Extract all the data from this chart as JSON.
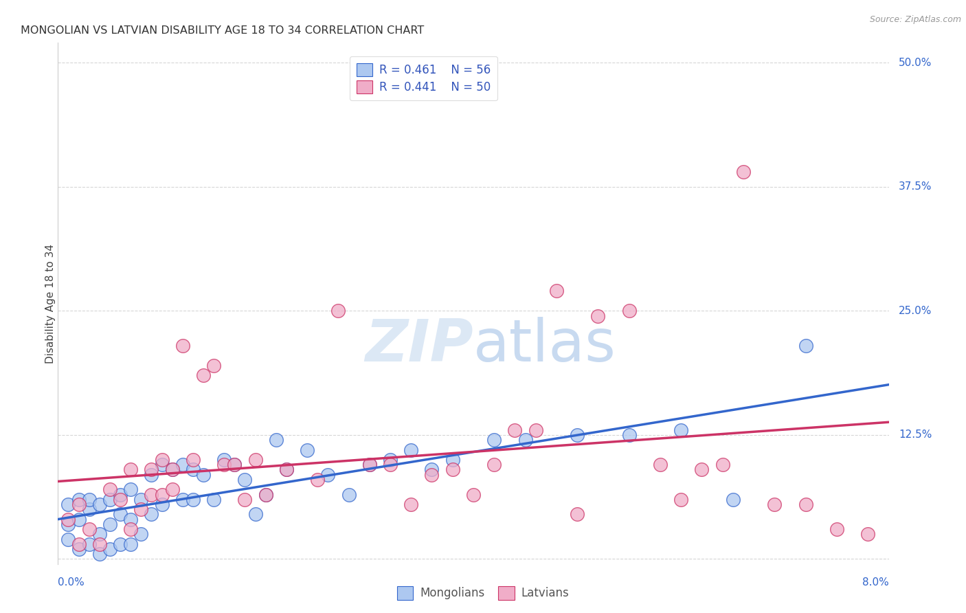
{
  "title": "MONGOLIAN VS LATVIAN DISABILITY AGE 18 TO 34 CORRELATION CHART",
  "source": "Source: ZipAtlas.com",
  "ylabel": "Disability Age 18 to 34",
  "xlim": [
    0.0,
    0.08
  ],
  "ylim": [
    -0.005,
    0.52
  ],
  "yticks": [
    0.0,
    0.125,
    0.25,
    0.375,
    0.5
  ],
  "ytick_labels": [
    "",
    "12.5%",
    "25.0%",
    "37.5%",
    "50.0%"
  ],
  "xticks": [
    0.0,
    0.02,
    0.04,
    0.06,
    0.08
  ],
  "xtick_labels": [
    "0.0%",
    "",
    "",
    "",
    "8.0%"
  ],
  "mongolian_R": 0.461,
  "mongolian_N": 56,
  "latvian_R": 0.441,
  "latvian_N": 50,
  "mongolian_color": "#adc8f0",
  "latvian_color": "#f0adc8",
  "mongolian_line_color": "#3366cc",
  "latvian_line_color": "#cc3366",
  "legend_text_color": "#3355bb",
  "background_color": "#ffffff",
  "watermark_color": "#dce8f5",
  "mongolian_x": [
    0.001,
    0.001,
    0.001,
    0.002,
    0.002,
    0.002,
    0.003,
    0.003,
    0.003,
    0.004,
    0.004,
    0.004,
    0.005,
    0.005,
    0.005,
    0.006,
    0.006,
    0.006,
    0.007,
    0.007,
    0.007,
    0.008,
    0.008,
    0.009,
    0.009,
    0.01,
    0.01,
    0.011,
    0.012,
    0.012,
    0.013,
    0.013,
    0.014,
    0.015,
    0.016,
    0.017,
    0.018,
    0.019,
    0.02,
    0.021,
    0.022,
    0.024,
    0.026,
    0.028,
    0.03,
    0.032,
    0.034,
    0.036,
    0.038,
    0.042,
    0.045,
    0.05,
    0.055,
    0.06,
    0.065,
    0.072
  ],
  "mongolian_y": [
    0.02,
    0.035,
    0.055,
    0.01,
    0.04,
    0.06,
    0.015,
    0.05,
    0.06,
    0.005,
    0.025,
    0.055,
    0.01,
    0.035,
    0.06,
    0.015,
    0.045,
    0.065,
    0.015,
    0.04,
    0.07,
    0.025,
    0.06,
    0.045,
    0.085,
    0.055,
    0.095,
    0.09,
    0.06,
    0.095,
    0.06,
    0.09,
    0.085,
    0.06,
    0.1,
    0.095,
    0.08,
    0.045,
    0.065,
    0.12,
    0.09,
    0.11,
    0.085,
    0.065,
    0.095,
    0.1,
    0.11,
    0.09,
    0.1,
    0.12,
    0.12,
    0.125,
    0.125,
    0.13,
    0.06,
    0.215
  ],
  "latvian_x": [
    0.001,
    0.002,
    0.002,
    0.003,
    0.004,
    0.005,
    0.006,
    0.007,
    0.007,
    0.008,
    0.009,
    0.009,
    0.01,
    0.01,
    0.011,
    0.011,
    0.012,
    0.013,
    0.014,
    0.015,
    0.016,
    0.017,
    0.018,
    0.019,
    0.02,
    0.022,
    0.025,
    0.027,
    0.03,
    0.032,
    0.034,
    0.036,
    0.038,
    0.04,
    0.042,
    0.044,
    0.046,
    0.048,
    0.05,
    0.052,
    0.055,
    0.058,
    0.06,
    0.062,
    0.064,
    0.066,
    0.069,
    0.072,
    0.075,
    0.078
  ],
  "latvian_y": [
    0.04,
    0.015,
    0.055,
    0.03,
    0.015,
    0.07,
    0.06,
    0.03,
    0.09,
    0.05,
    0.065,
    0.09,
    0.065,
    0.1,
    0.07,
    0.09,
    0.215,
    0.1,
    0.185,
    0.195,
    0.095,
    0.095,
    0.06,
    0.1,
    0.065,
    0.09,
    0.08,
    0.25,
    0.095,
    0.095,
    0.055,
    0.085,
    0.09,
    0.065,
    0.095,
    0.13,
    0.13,
    0.27,
    0.045,
    0.245,
    0.25,
    0.095,
    0.06,
    0.09,
    0.095,
    0.39,
    0.055,
    0.055,
    0.03,
    0.025
  ]
}
